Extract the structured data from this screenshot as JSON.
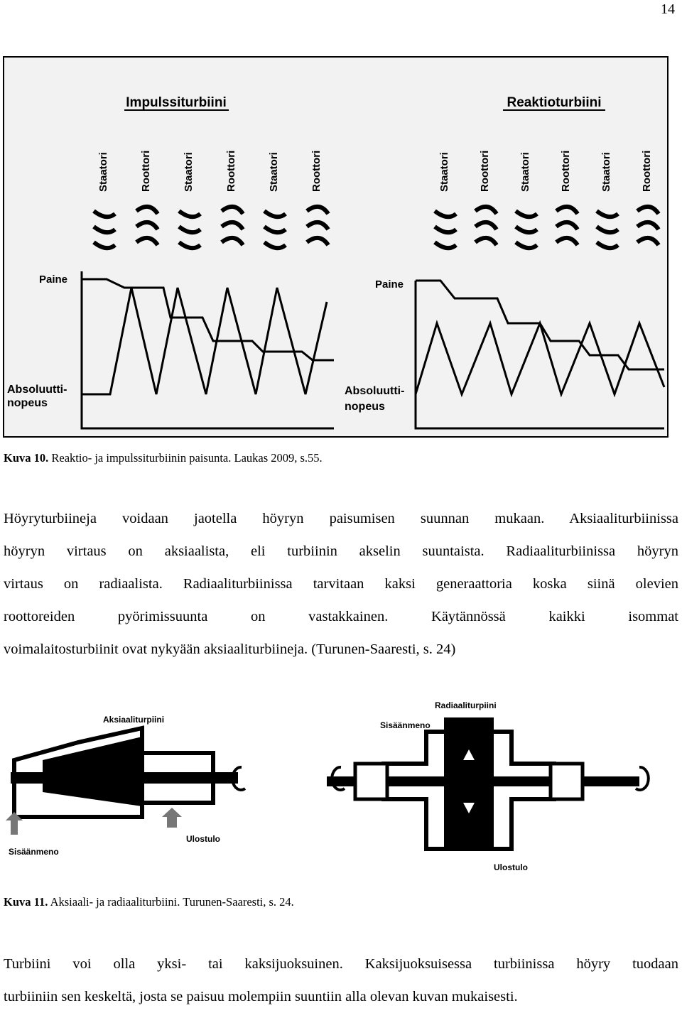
{
  "page_number": "14",
  "figure1": {
    "left_title": "Impulssiturbiini",
    "right_title": "Reaktioturbiini",
    "left_blades": [
      "Staatori",
      "Roottori",
      "Staatori",
      "Roottori",
      "Staatori",
      "Roottori"
    ],
    "right_blades": [
      "Staatori",
      "Roottori",
      "Staatori",
      "Roottori",
      "Staatori",
      "Roottori"
    ],
    "left_pressure": "Paine",
    "right_pressure": "Paine",
    "left_velocity": [
      "Absoluutti-",
      "nopeus"
    ],
    "right_velocity": [
      "Absoluutti-",
      "nopeus"
    ]
  },
  "caption1": {
    "label": "Kuva 10.",
    "text": "Reaktio- ja impulssiturbiinin paisunta. Laukas 2009, s.55."
  },
  "paragraph1": [
    "Höyryturbiineja voidaan jaotella höyryn paisumisen suunnan mukaan. Aksiaaliturbiinissa",
    "höyryn virtaus on aksiaalista, eli turbiinin akselin suuntaista. Radiaaliturbiinissa höyryn",
    "virtaus on radiaalista. Radiaaliturbiinissa tarvitaan kaksi generaattoria koska siinä olevien",
    "roottoreiden pyörimissuunta on vastakkainen. Käytännössä kaikki isommat",
    "voimalaitosturbiinit ovat nykyään aksiaaliturbiineja. (Turunen-Saaresti, s. 24)"
  ],
  "figure2": {
    "axial_title": "Aksiaaliturpiini",
    "axial_inlet": "Sisäänmeno",
    "axial_outlet": "Ulostulo",
    "radial_title": "Radiaaliturpiini",
    "radial_inlet": "Sisäänmeno",
    "radial_outlet": "Ulostulo"
  },
  "caption2": {
    "label": "Kuva 11.",
    "text": "Aksiaali- ja radiaaliturbiini. Turunen-Saaresti, s. 24."
  },
  "paragraph2": [
    "Turbiini voi olla yksi- tai kaksijuoksuinen. Kaksijuoksuisessa turbiinissa höyry tuodaan",
    "turbiiniin sen keskeltä, josta se paisuu molempiin suuntiin alla olevan kuvan mukaisesti."
  ]
}
